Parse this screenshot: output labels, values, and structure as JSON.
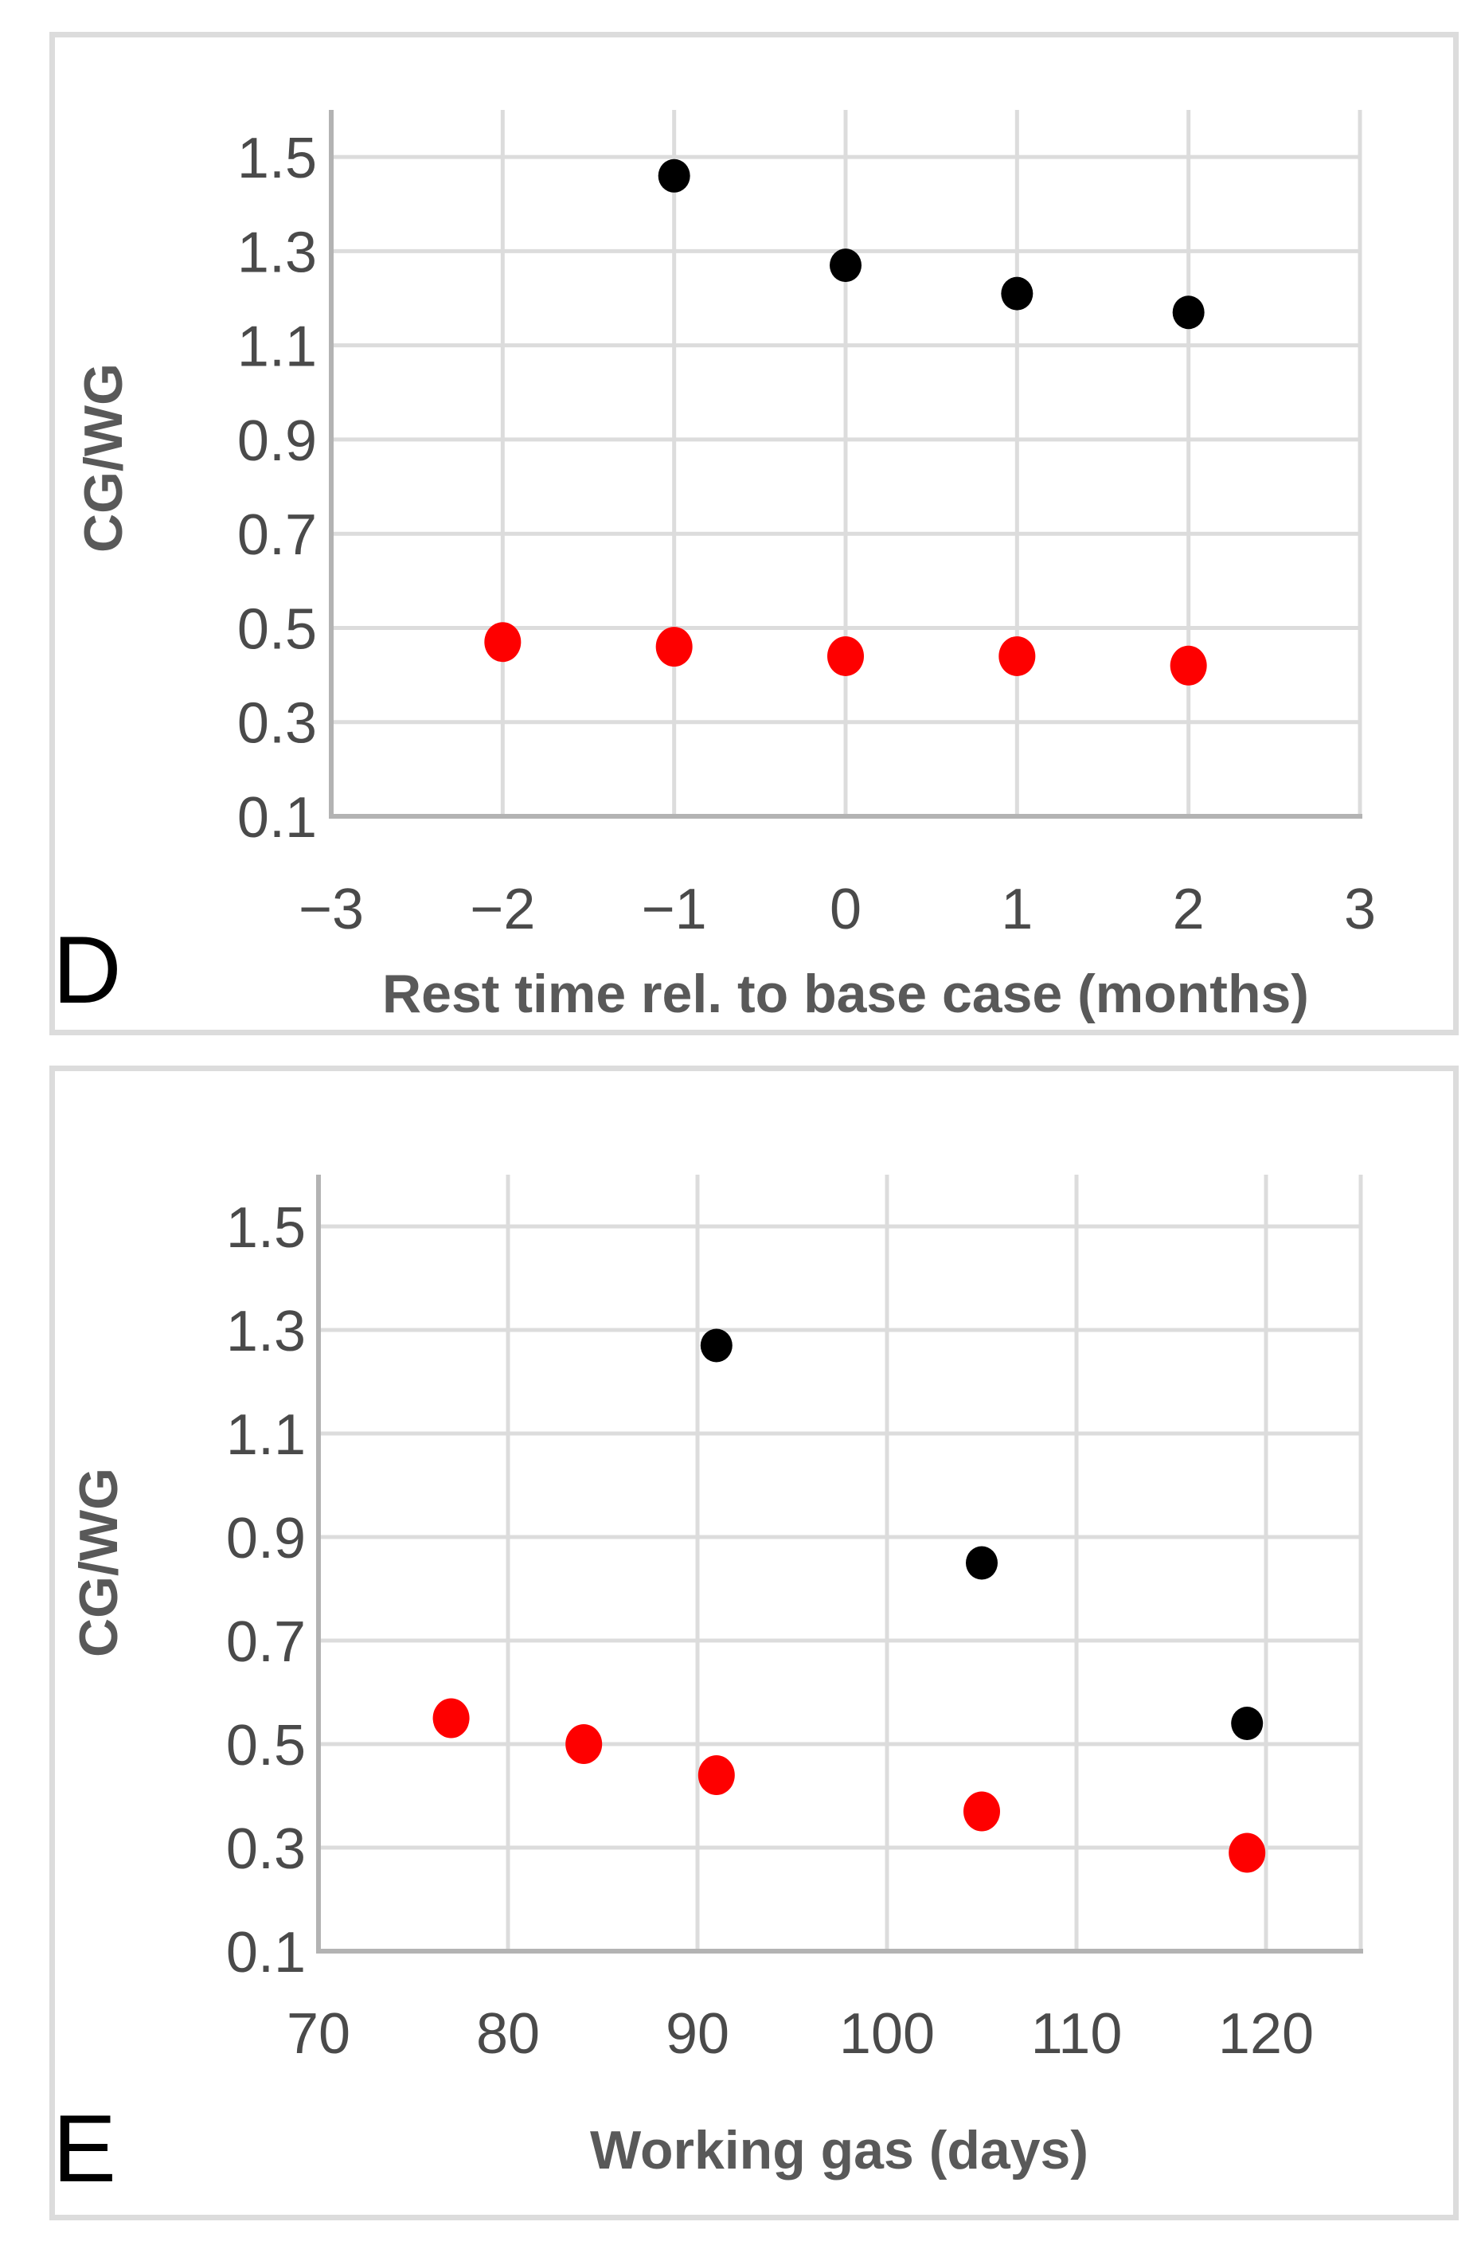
{
  "figure": {
    "panels": [
      {
        "letter": "D",
        "y_axis_title": "CG/WG",
        "x_axis_title": "Rest time rel. to base case (months)"
      },
      {
        "letter": "E",
        "y_axis_title": "CG/WG",
        "x_axis_title": "Working gas (days)"
      }
    ]
  },
  "colors": {
    "grid": "#dcdcdc",
    "axis": "#b3b3b3",
    "tick_label": "#4a4a4a",
    "axis_title": "#595959",
    "series_black": "#000000",
    "series_red": "#fe0000",
    "panel_border": "#dcdcdc",
    "background": "#ffffff"
  },
  "chart_data": [
    {
      "type": "scatter",
      "title": "",
      "xlabel": "Rest time rel. to base case (months)",
      "ylabel": "CG/WG",
      "panel_letter": "D",
      "xlim": [
        -3,
        3
      ],
      "ylim": [
        0.1,
        1.6
      ],
      "x_ticks": [
        -3,
        -2,
        -1,
        0,
        1,
        2,
        3
      ],
      "x_tick_labels": [
        "−3",
        "−2",
        "−1",
        "0",
        "1",
        "2",
        "3"
      ],
      "y_ticks": [
        0.1,
        0.3,
        0.5,
        0.7,
        0.9,
        1.1,
        1.3,
        1.5
      ],
      "y_tick_labels": [
        "0.1",
        "0.3",
        "0.5",
        "0.7",
        "0.9",
        "1.1",
        "1.3",
        "1.5"
      ],
      "x_extra_gridlines": [],
      "grid": true,
      "legend": false,
      "series": [
        {
          "name": "black",
          "color": "#000000",
          "marker_rx": 20,
          "marker_ry": 21,
          "points": [
            [
              -1,
              1.46
            ],
            [
              0,
              1.27
            ],
            [
              1,
              1.21
            ],
            [
              2,
              1.17
            ]
          ]
        },
        {
          "name": "red",
          "color": "#fe0000",
          "marker_rx": 23,
          "marker_ry": 25,
          "points": [
            [
              -2,
              0.47
            ],
            [
              -1,
              0.46
            ],
            [
              0,
              0.44
            ],
            [
              1,
              0.44
            ],
            [
              2,
              0.42
            ]
          ]
        }
      ]
    },
    {
      "type": "scatter",
      "title": "",
      "xlabel": "Working gas (days)",
      "ylabel": "CG/WG",
      "panel_letter": "E",
      "xlim": [
        70,
        125
      ],
      "ylim": [
        0.1,
        1.6
      ],
      "x_ticks": [
        70,
        80,
        90,
        100,
        110,
        120
      ],
      "x_tick_labels": [
        "70",
        "80",
        "90",
        "100",
        "110",
        "120"
      ],
      "y_ticks": [
        0.1,
        0.3,
        0.5,
        0.7,
        0.9,
        1.1,
        1.3,
        1.5
      ],
      "y_tick_labels": [
        "0.1",
        "0.3",
        "0.5",
        "0.7",
        "0.9",
        "1.1",
        "1.3",
        "1.5"
      ],
      "x_extra_gridlines": [
        125
      ],
      "grid": true,
      "legend": false,
      "series": [
        {
          "name": "black",
          "color": "#000000",
          "marker_rx": 20,
          "marker_ry": 21,
          "points": [
            [
              91,
              1.27
            ],
            [
              105,
              0.85
            ],
            [
              119,
              0.54
            ]
          ]
        },
        {
          "name": "red",
          "color": "#fe0000",
          "marker_rx": 23,
          "marker_ry": 25,
          "points": [
            [
              77,
              0.55
            ],
            [
              84,
              0.5
            ],
            [
              91,
              0.44
            ],
            [
              105,
              0.37
            ],
            [
              119,
              0.29
            ]
          ]
        }
      ]
    }
  ]
}
